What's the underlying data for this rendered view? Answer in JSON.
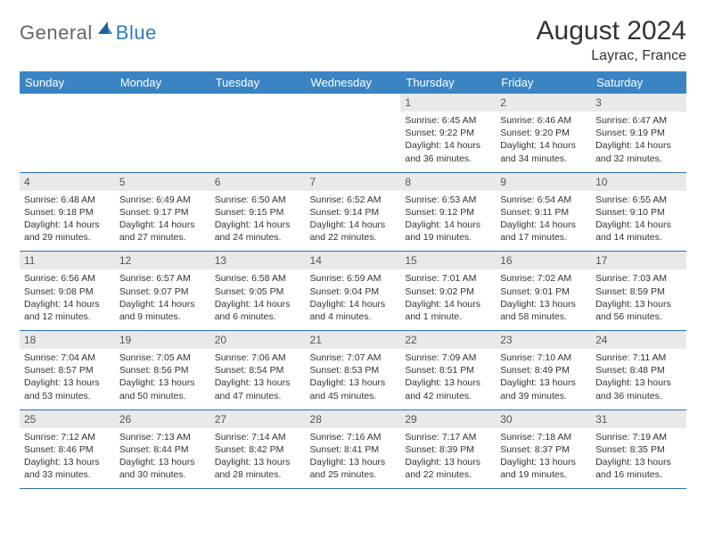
{
  "logo": {
    "text1": "General",
    "text2": "Blue"
  },
  "title": "August 2024",
  "subtitle": "Layrac, France",
  "colors": {
    "header_bg": "#3b84c4",
    "header_text": "#ffffff",
    "daynum_bg": "#e9e9e9",
    "daynum_text": "#555555",
    "cell_border": "#2f6fa8",
    "title_color": "#333333",
    "logo_gray": "#666666",
    "logo_blue": "#2f7bbf"
  },
  "day_headers": [
    "Sunday",
    "Monday",
    "Tuesday",
    "Wednesday",
    "Thursday",
    "Friday",
    "Saturday"
  ],
  "weeks": [
    [
      {
        "n": "",
        "sunrise": "",
        "sunset": "",
        "daylight": ""
      },
      {
        "n": "",
        "sunrise": "",
        "sunset": "",
        "daylight": ""
      },
      {
        "n": "",
        "sunrise": "",
        "sunset": "",
        "daylight": ""
      },
      {
        "n": "",
        "sunrise": "",
        "sunset": "",
        "daylight": ""
      },
      {
        "n": "1",
        "sunrise": "Sunrise: 6:45 AM",
        "sunset": "Sunset: 9:22 PM",
        "daylight": "Daylight: 14 hours and 36 minutes."
      },
      {
        "n": "2",
        "sunrise": "Sunrise: 6:46 AM",
        "sunset": "Sunset: 9:20 PM",
        "daylight": "Daylight: 14 hours and 34 minutes."
      },
      {
        "n": "3",
        "sunrise": "Sunrise: 6:47 AM",
        "sunset": "Sunset: 9:19 PM",
        "daylight": "Daylight: 14 hours and 32 minutes."
      }
    ],
    [
      {
        "n": "4",
        "sunrise": "Sunrise: 6:48 AM",
        "sunset": "Sunset: 9:18 PM",
        "daylight": "Daylight: 14 hours and 29 minutes."
      },
      {
        "n": "5",
        "sunrise": "Sunrise: 6:49 AM",
        "sunset": "Sunset: 9:17 PM",
        "daylight": "Daylight: 14 hours and 27 minutes."
      },
      {
        "n": "6",
        "sunrise": "Sunrise: 6:50 AM",
        "sunset": "Sunset: 9:15 PM",
        "daylight": "Daylight: 14 hours and 24 minutes."
      },
      {
        "n": "7",
        "sunrise": "Sunrise: 6:52 AM",
        "sunset": "Sunset: 9:14 PM",
        "daylight": "Daylight: 14 hours and 22 minutes."
      },
      {
        "n": "8",
        "sunrise": "Sunrise: 6:53 AM",
        "sunset": "Sunset: 9:12 PM",
        "daylight": "Daylight: 14 hours and 19 minutes."
      },
      {
        "n": "9",
        "sunrise": "Sunrise: 6:54 AM",
        "sunset": "Sunset: 9:11 PM",
        "daylight": "Daylight: 14 hours and 17 minutes."
      },
      {
        "n": "10",
        "sunrise": "Sunrise: 6:55 AM",
        "sunset": "Sunset: 9:10 PM",
        "daylight": "Daylight: 14 hours and 14 minutes."
      }
    ],
    [
      {
        "n": "11",
        "sunrise": "Sunrise: 6:56 AM",
        "sunset": "Sunset: 9:08 PM",
        "daylight": "Daylight: 14 hours and 12 minutes."
      },
      {
        "n": "12",
        "sunrise": "Sunrise: 6:57 AM",
        "sunset": "Sunset: 9:07 PM",
        "daylight": "Daylight: 14 hours and 9 minutes."
      },
      {
        "n": "13",
        "sunrise": "Sunrise: 6:58 AM",
        "sunset": "Sunset: 9:05 PM",
        "daylight": "Daylight: 14 hours and 6 minutes."
      },
      {
        "n": "14",
        "sunrise": "Sunrise: 6:59 AM",
        "sunset": "Sunset: 9:04 PM",
        "daylight": "Daylight: 14 hours and 4 minutes."
      },
      {
        "n": "15",
        "sunrise": "Sunrise: 7:01 AM",
        "sunset": "Sunset: 9:02 PM",
        "daylight": "Daylight: 14 hours and 1 minute."
      },
      {
        "n": "16",
        "sunrise": "Sunrise: 7:02 AM",
        "sunset": "Sunset: 9:01 PM",
        "daylight": "Daylight: 13 hours and 58 minutes."
      },
      {
        "n": "17",
        "sunrise": "Sunrise: 7:03 AM",
        "sunset": "Sunset: 8:59 PM",
        "daylight": "Daylight: 13 hours and 56 minutes."
      }
    ],
    [
      {
        "n": "18",
        "sunrise": "Sunrise: 7:04 AM",
        "sunset": "Sunset: 8:57 PM",
        "daylight": "Daylight: 13 hours and 53 minutes."
      },
      {
        "n": "19",
        "sunrise": "Sunrise: 7:05 AM",
        "sunset": "Sunset: 8:56 PM",
        "daylight": "Daylight: 13 hours and 50 minutes."
      },
      {
        "n": "20",
        "sunrise": "Sunrise: 7:06 AM",
        "sunset": "Sunset: 8:54 PM",
        "daylight": "Daylight: 13 hours and 47 minutes."
      },
      {
        "n": "21",
        "sunrise": "Sunrise: 7:07 AM",
        "sunset": "Sunset: 8:53 PM",
        "daylight": "Daylight: 13 hours and 45 minutes."
      },
      {
        "n": "22",
        "sunrise": "Sunrise: 7:09 AM",
        "sunset": "Sunset: 8:51 PM",
        "daylight": "Daylight: 13 hours and 42 minutes."
      },
      {
        "n": "23",
        "sunrise": "Sunrise: 7:10 AM",
        "sunset": "Sunset: 8:49 PM",
        "daylight": "Daylight: 13 hours and 39 minutes."
      },
      {
        "n": "24",
        "sunrise": "Sunrise: 7:11 AM",
        "sunset": "Sunset: 8:48 PM",
        "daylight": "Daylight: 13 hours and 36 minutes."
      }
    ],
    [
      {
        "n": "25",
        "sunrise": "Sunrise: 7:12 AM",
        "sunset": "Sunset: 8:46 PM",
        "daylight": "Daylight: 13 hours and 33 minutes."
      },
      {
        "n": "26",
        "sunrise": "Sunrise: 7:13 AM",
        "sunset": "Sunset: 8:44 PM",
        "daylight": "Daylight: 13 hours and 30 minutes."
      },
      {
        "n": "27",
        "sunrise": "Sunrise: 7:14 AM",
        "sunset": "Sunset: 8:42 PM",
        "daylight": "Daylight: 13 hours and 28 minutes."
      },
      {
        "n": "28",
        "sunrise": "Sunrise: 7:16 AM",
        "sunset": "Sunset: 8:41 PM",
        "daylight": "Daylight: 13 hours and 25 minutes."
      },
      {
        "n": "29",
        "sunrise": "Sunrise: 7:17 AM",
        "sunset": "Sunset: 8:39 PM",
        "daylight": "Daylight: 13 hours and 22 minutes."
      },
      {
        "n": "30",
        "sunrise": "Sunrise: 7:18 AM",
        "sunset": "Sunset: 8:37 PM",
        "daylight": "Daylight: 13 hours and 19 minutes."
      },
      {
        "n": "31",
        "sunrise": "Sunrise: 7:19 AM",
        "sunset": "Sunset: 8:35 PM",
        "daylight": "Daylight: 13 hours and 16 minutes."
      }
    ]
  ]
}
